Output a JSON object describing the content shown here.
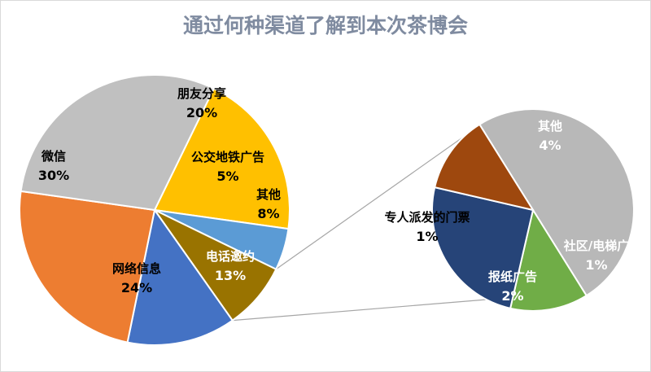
{
  "chart_data": {
    "type": "pie",
    "title": "通过何种渠道了解到本次茶博会",
    "main_pie": [
      {
        "name": "朋友分享",
        "value": 20,
        "label": "20%",
        "color": "#FFC000"
      },
      {
        "name": "公交地铁广告",
        "value": 5,
        "label": "5%",
        "color": "#5B9BD5"
      },
      {
        "name": "其他",
        "value": 8,
        "label": "8%",
        "color": "#997300"
      },
      {
        "name": "电话邀约",
        "value": 13,
        "label": "13%",
        "color": "#4472C4"
      },
      {
        "name": "网络信息",
        "value": 24,
        "label": "24%",
        "color": "#ED7D31"
      },
      {
        "name": "微信",
        "value": 30,
        "label": "30%",
        "color": "#C0C0C0"
      }
    ],
    "sub_pie_of": "其他",
    "sub_pie": [
      {
        "name": "其他",
        "value": 4,
        "label": "4%",
        "color": "#B8B8B8"
      },
      {
        "name": "社区/电梯广",
        "value": 1,
        "label": "1%",
        "color": "#70AD47"
      },
      {
        "name": "报纸广告",
        "value": 2,
        "label": "2%",
        "color": "#264478"
      },
      {
        "name": "专人派发的门票",
        "value": 1,
        "label": "1%",
        "color": "#9E480E"
      }
    ]
  }
}
